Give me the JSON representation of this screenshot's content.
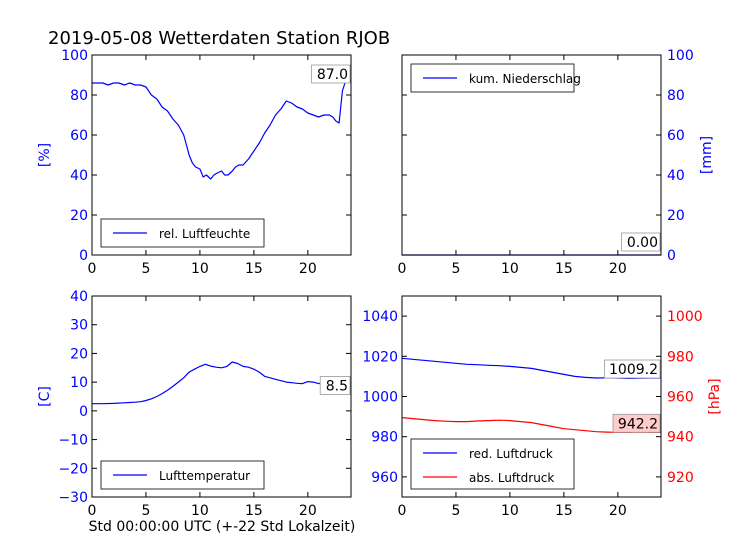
{
  "figure": {
    "title": "2019-05-08 Wetterdaten Station RJOB",
    "xlabel": "Std 00:00:00 UTC (+-22 Std Lokalzeit)"
  },
  "colors": {
    "blue": "#0000ff",
    "red": "#ff0000",
    "black": "#000000",
    "red_label_bg": "#ffcccc"
  },
  "chart_data": [
    {
      "id": "humidity",
      "type": "line",
      "title": "",
      "xlabel": "",
      "ylabel": "[%]",
      "xlim": [
        0,
        24
      ],
      "ylim": [
        0,
        100
      ],
      "xticks": [
        0,
        5,
        10,
        15,
        20
      ],
      "yticks": [
        0,
        20,
        40,
        60,
        80,
        100
      ],
      "last_value_label": "87.0",
      "legend": {
        "location": "lower-left",
        "entries": [
          "rel. Luftfeuchte"
        ]
      },
      "series": [
        {
          "name": "rel. Luftfeuchte",
          "color": "#0000ff",
          "x": [
            0,
            0.5,
            1,
            1.5,
            2,
            2.5,
            3,
            3.5,
            4,
            4.5,
            5,
            5.5,
            6,
            6.5,
            7,
            7.5,
            8,
            8.5,
            8.8,
            9,
            9.3,
            9.6,
            10,
            10.3,
            10.6,
            11,
            11.3,
            11.6,
            12,
            12.3,
            12.6,
            13,
            13.3,
            13.6,
            14,
            14.5,
            15,
            15.5,
            16,
            16.5,
            17,
            17.5,
            18,
            18.5,
            19,
            19.5,
            20,
            20.5,
            21,
            21.5,
            22,
            22.3,
            22.6,
            22.9,
            23.2,
            23.5,
            24
          ],
          "y": [
            86,
            86,
            86,
            85,
            86,
            86,
            85,
            86,
            85,
            85,
            84,
            80,
            78,
            74,
            72,
            68,
            65,
            60,
            54,
            50,
            46,
            44,
            43,
            39,
            40,
            38,
            40,
            41,
            42,
            40,
            40,
            42,
            44,
            45,
            45,
            48,
            52,
            56,
            61,
            65,
            70,
            73,
            77,
            76,
            74,
            73,
            71,
            70,
            69,
            70,
            70,
            69,
            67,
            66,
            82,
            87,
            87
          ]
        }
      ]
    },
    {
      "id": "precipitation",
      "type": "line",
      "title": "",
      "xlabel": "",
      "ylabel": "[mm]",
      "xlim": [
        0,
        24
      ],
      "ylim": [
        0,
        100
      ],
      "xticks": [
        0,
        5,
        10,
        15,
        20
      ],
      "yticks": [
        0,
        20,
        40,
        60,
        80,
        100
      ],
      "y_axis_side": "right",
      "last_value_label": "0.00",
      "legend": {
        "location": "upper-left",
        "entries": [
          "kum. Niederschlag"
        ]
      },
      "series": [
        {
          "name": "kum. Niederschlag",
          "color": "#0000ff",
          "x": [
            0,
            24
          ],
          "y": [
            0,
            0
          ]
        }
      ]
    },
    {
      "id": "temperature",
      "type": "line",
      "title": "",
      "xlabel": "",
      "ylabel": "[C]",
      "xlim": [
        0,
        24
      ],
      "ylim": [
        -30,
        40
      ],
      "xticks": [
        0,
        5,
        10,
        15,
        20
      ],
      "yticks": [
        -30,
        -20,
        -10,
        0,
        10,
        20,
        30,
        40
      ],
      "last_value_label": "8.5",
      "legend": {
        "location": "lower-left",
        "entries": [
          "Lufttemperatur"
        ]
      },
      "series": [
        {
          "name": "Lufttemperatur",
          "color": "#0000ff",
          "x": [
            0,
            1,
            2,
            3,
            4,
            4.5,
            5,
            5.5,
            6,
            6.5,
            7,
            7.5,
            8,
            8.5,
            9,
            9.5,
            10,
            10.5,
            11,
            11.5,
            12,
            12.5,
            13,
            13.5,
            14,
            14.5,
            15,
            15.5,
            16,
            16.5,
            17,
            17.5,
            18,
            18.5,
            19,
            19.5,
            20,
            20.5,
            21,
            21.5,
            22,
            22.5,
            23,
            24
          ],
          "y": [
            2.5,
            2.5,
            2.6,
            2.8,
            3,
            3.2,
            3.6,
            4.2,
            5,
            6,
            7.2,
            8.5,
            10,
            11.5,
            13.5,
            14.5,
            15.5,
            16.2,
            15.6,
            15.2,
            15,
            15.5,
            17,
            16.5,
            15.5,
            15.2,
            14.5,
            13.5,
            12,
            11.5,
            11,
            10.5,
            10,
            9.8,
            9.6,
            9.5,
            10.2,
            10,
            9.5,
            9.8,
            9.5,
            9.2,
            9,
            8.5
          ]
        }
      ]
    },
    {
      "id": "pressure",
      "type": "line",
      "title": "",
      "xlabel": "",
      "ylabel": "",
      "xlim": [
        0,
        24
      ],
      "ylim": [
        950,
        1050
      ],
      "xticks": [
        0,
        5,
        10,
        15,
        20
      ],
      "yticks": [
        960,
        980,
        1000,
        1020,
        1040
      ],
      "y2label": "[hPa]",
      "y2lim": [
        910,
        1010
      ],
      "y2ticks": [
        920,
        940,
        960,
        980,
        1000
      ],
      "last_value_labels": [
        "1009.2",
        "942.2"
      ],
      "legend": {
        "location": "lower-left",
        "entries": [
          "red. Luftdruck",
          "abs. Luftdruck"
        ]
      },
      "series": [
        {
          "name": "red. Luftdruck",
          "color": "#0000ff",
          "axis": "left",
          "x": [
            0,
            1,
            2,
            3,
            4,
            5,
            6,
            7,
            8,
            9,
            10,
            11,
            12,
            13,
            14,
            15,
            16,
            17,
            18,
            19,
            20,
            21,
            22,
            23,
            24
          ],
          "y": [
            1019,
            1018.5,
            1018,
            1017.5,
            1017,
            1016.5,
            1016,
            1015.8,
            1015.5,
            1015.3,
            1015,
            1014.5,
            1014,
            1013,
            1012,
            1011,
            1010,
            1009.5,
            1009.2,
            1009.3,
            1009.2,
            1009.0,
            1009.1,
            1009.2,
            1009.2
          ]
        },
        {
          "name": "abs. Luftdruck",
          "color": "#ff0000",
          "axis": "right",
          "x": [
            0,
            1,
            2,
            3,
            4,
            5,
            6,
            7,
            8,
            9,
            10,
            11,
            12,
            13,
            14,
            15,
            16,
            17,
            18,
            19,
            20,
            21,
            22,
            23,
            24
          ],
          "y": [
            949.5,
            949,
            948.5,
            948,
            947.7,
            947.5,
            947.5,
            947.8,
            948,
            948.2,
            948,
            947.5,
            947,
            946,
            945,
            944,
            943.5,
            943,
            942.5,
            942.3,
            942.2,
            942.2,
            942.3,
            942.2,
            942.2
          ]
        }
      ]
    }
  ]
}
